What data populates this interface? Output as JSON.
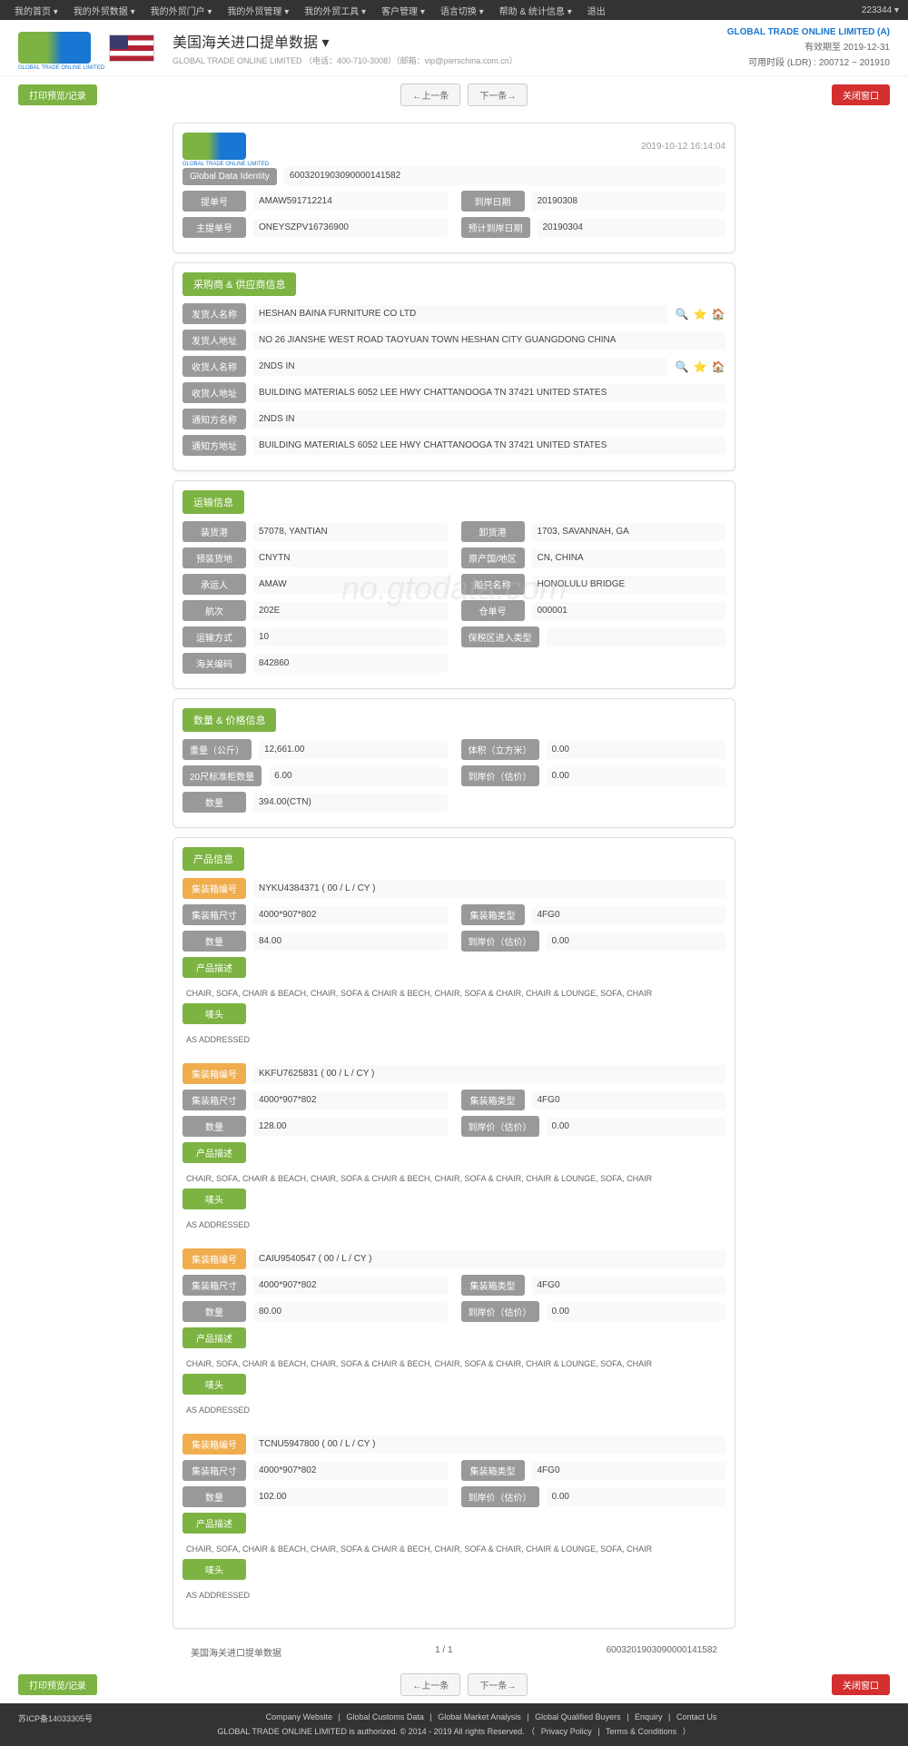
{
  "topbar": {
    "menu": [
      "我的首页 ▾",
      "我的外贸数据 ▾",
      "我的外贸门户 ▾",
      "我的外贸管理 ▾",
      "我的外贸工具 ▾",
      "客户管理 ▾",
      "语言切换 ▾",
      "帮助 & 统计信息 ▾",
      "退出"
    ],
    "right": "223344 ▾"
  },
  "header": {
    "title": "美国海关进口提单数据 ▾",
    "sub": "GLOBAL TRADE ONLINE LIMITED （电话：400-710-3008）（邮箱：vip@pierschina.com.cn）",
    "company": "GLOBAL TRADE ONLINE LIMITED (A)",
    "expiry": "有效期至 2019-12-31",
    "ldr": "可用时段 (LDR) : 200712 ~ 201910"
  },
  "toolbar": {
    "print": "打印预览/记录",
    "prev": "←上一条",
    "next": "下一条→",
    "close": "关闭窗口"
  },
  "timestamp": "2019-10-12 16:14:04",
  "identity": {
    "gdi_label": "Global Data Identity",
    "gdi": "6003201903090000141582",
    "bill_label": "提单号",
    "bill": "AMAW591712214",
    "arrival_label": "到岸日期",
    "arrival": "20190308",
    "master_label": "主提单号",
    "master": "ONEYSZPV16736900",
    "est_label": "预计到岸日期",
    "est": "20190304"
  },
  "sections": {
    "buyer": "采购商 & 供应商信息",
    "transport": "运输信息",
    "qty": "数量 & 价格信息",
    "product": "产品信息"
  },
  "buyer": {
    "shipper_label": "发货人名称",
    "shipper": "HESHAN BAINA FURNITURE CO LTD",
    "shipper_addr_label": "发货人地址",
    "shipper_addr": "NO 26 JIANSHE WEST ROAD TAOYUAN TOWN HESHAN CITY GUANGDONG CHINA",
    "consignee_label": "收货人名称",
    "consignee": "2NDS IN",
    "consignee_addr_label": "收货人地址",
    "consignee_addr": "BUILDING MATERIALS 6052 LEE HWY CHATTANOOGA TN 37421 UNITED STATES",
    "notify_label": "通知方名称",
    "notify": "2NDS IN",
    "notify_addr_label": "通知方地址",
    "notify_addr": "BUILDING MATERIALS 6052 LEE HWY CHATTANOOGA TN 37421 UNITED STATES"
  },
  "transport": {
    "load_port_label": "装货港",
    "load_port": "57078, YANTIAN",
    "unload_port_label": "卸货港",
    "unload_port": "1703, SAVANNAH, GA",
    "receipt_label": "预装货地",
    "receipt": "CNYTN",
    "origin_label": "原产国/地区",
    "origin": "CN, CHINA",
    "carrier_label": "承运人",
    "carrier": "AMAW",
    "vessel_label": "船只名称",
    "vessel": "HONOLULU BRIDGE",
    "voyage_label": "航次",
    "voyage": "202E",
    "warehouse_label": "仓单号",
    "warehouse": "000001",
    "mode_label": "运输方式",
    "mode": "10",
    "zone_label": "保税区进入类型",
    "zone": "",
    "hs_label": "海关编码",
    "hs": "842860"
  },
  "qty": {
    "weight_label": "重量（公斤）",
    "weight": "12,661.00",
    "volume_label": "体积（立方米）",
    "volume": "0.00",
    "teu_label": "20尺标准柜数量",
    "teu": "6.00",
    "value_label": "到岸价（估价）",
    "value": "0.00",
    "count_label": "数量",
    "count": "394.00(CTN)"
  },
  "product_labels": {
    "container": "集装箱编号",
    "size": "集装箱尺寸",
    "type": "集装箱类型",
    "qty": "数量",
    "price": "到岸价（估价）",
    "desc": "产品描述",
    "mark": "唛头"
  },
  "products": [
    {
      "container": "NYKU4384371 ( 00 / L / CY )",
      "size": "4000*907*802",
      "type": "4FG0",
      "qty": "84.00",
      "price": "0.00",
      "desc": "CHAIR, SOFA, CHAIR & BEACH, CHAIR, SOFA & CHAIR & BECH, CHAIR, SOFA & CHAIR, CHAIR & LOUNGE, SOFA, CHAIR",
      "mark": "AS ADDRESSED"
    },
    {
      "container": "KKFU7625831 ( 00 / L / CY )",
      "size": "4000*907*802",
      "type": "4FG0",
      "qty": "128.00",
      "price": "0.00",
      "desc": "CHAIR, SOFA, CHAIR & BEACH, CHAIR, SOFA & CHAIR & BECH, CHAIR, SOFA & CHAIR, CHAIR & LOUNGE, SOFA, CHAIR",
      "mark": "AS ADDRESSED"
    },
    {
      "container": "CAIU9540547 ( 00 / L / CY )",
      "size": "4000*907*802",
      "type": "4FG0",
      "qty": "80.00",
      "price": "0.00",
      "desc": "CHAIR, SOFA, CHAIR & BEACH, CHAIR, SOFA & CHAIR & BECH, CHAIR, SOFA & CHAIR, CHAIR & LOUNGE, SOFA, CHAIR",
      "mark": "AS ADDRESSED"
    },
    {
      "container": "TCNU5947800 ( 00 / L / CY )",
      "size": "4000*907*802",
      "type": "4FG0",
      "qty": "102.00",
      "price": "0.00",
      "desc": "CHAIR, SOFA, CHAIR & BEACH, CHAIR, SOFA & CHAIR & BECH, CHAIR, SOFA & CHAIR, CHAIR & LOUNGE, SOFA, CHAIR",
      "mark": "AS ADDRESSED"
    }
  ],
  "footer": {
    "title": "美国海关进口提单数据",
    "page": "1 / 1",
    "id": "6003201903090000141582"
  },
  "pagefooter": {
    "icp": "苏ICP备14033305号",
    "links": [
      "Company Website",
      "Global Customs Data",
      "Global Market Analysis",
      "Global Qualified Buyers",
      "Enquiry",
      "Contact Us"
    ],
    "copy": "GLOBAL TRADE ONLINE LIMITED is authorized. © 2014 - 2019 All rights Reserved.",
    "privacy": "Privacy Policy",
    "terms": "Terms & Conditions"
  },
  "watermark": "no.gtodata.com"
}
